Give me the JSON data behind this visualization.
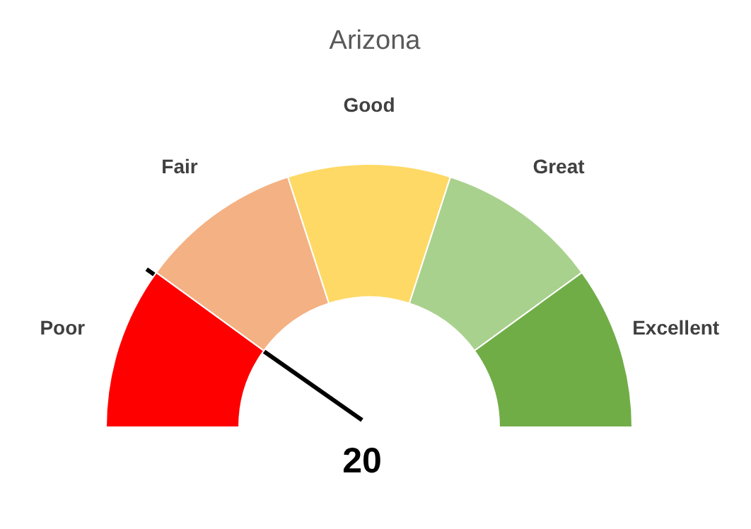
{
  "chart_data": {
    "type": "donut",
    "title": "Arizona",
    "categories": [
      "Poor",
      "Fair",
      "Good",
      "Great",
      "Excellent"
    ],
    "values": [
      20,
      20,
      20,
      20,
      20
    ],
    "colors": [
      "#ff0000",
      "#f4b183",
      "#ffd966",
      "#a9d18e",
      "#70ad47"
    ],
    "needle": "Poor",
    "annotations": [
      "20"
    ]
  }
}
